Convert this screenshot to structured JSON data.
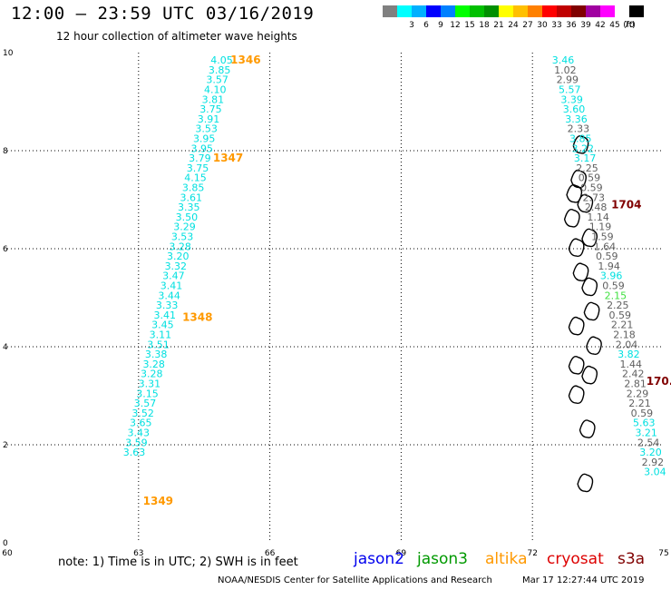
{
  "header": {
    "title": "12:00 – 23:59 UTC 03/16/2019",
    "subtitle": "12 hour collection of altimeter wave heights"
  },
  "colorbar": {
    "unit_label": "(ft)",
    "swatches": [
      {
        "color": "#808080",
        "label": ""
      },
      {
        "color": "#00ffff",
        "label": "3"
      },
      {
        "color": "#00b0ff",
        "label": "6"
      },
      {
        "color": "#0000ff",
        "label": "9"
      },
      {
        "color": "#0080ff",
        "label": "12"
      },
      {
        "color": "#00ff00",
        "label": "15"
      },
      {
        "color": "#00c000",
        "label": "18"
      },
      {
        "color": "#009000",
        "label": "21"
      },
      {
        "color": "#ffff00",
        "label": "24"
      },
      {
        "color": "#ffc000",
        "label": "27"
      },
      {
        "color": "#ff8000",
        "label": "30"
      },
      {
        "color": "#ff0000",
        "label": "33"
      },
      {
        "color": "#c00000",
        "label": "36"
      },
      {
        "color": "#800000",
        "label": "39"
      },
      {
        "color": "#a000a0",
        "label": "42"
      },
      {
        "color": "#ff00ff",
        "label": "45"
      },
      {
        "color": "#ffffff",
        "label": "70"
      },
      {
        "color": "#000000",
        "label": ""
      }
    ]
  },
  "chart_data": {
    "type": "map",
    "xlim": [
      60,
      75
    ],
    "ylim": [
      0,
      10
    ],
    "x_ticks": [
      "60",
      "63",
      "66",
      "69",
      "72",
      "75"
    ],
    "y_ticks": [
      "0",
      "2",
      "4",
      "6",
      "8",
      "10"
    ],
    "grid": true,
    "colors": {
      "cyan": "#00e0e0",
      "gray": "#606060",
      "orange": "#ff9900",
      "darkred": "#800000",
      "green": "#40e040"
    },
    "track_labels": [
      {
        "text": "1346",
        "lon": 65.1,
        "lat": 9.85,
        "color": "orange"
      },
      {
        "text": "1347",
        "lon": 64.7,
        "lat": 7.85,
        "color": "orange"
      },
      {
        "text": "1348",
        "lon": 64.0,
        "lat": 4.6,
        "color": "orange"
      },
      {
        "text": "1349",
        "lon": 63.1,
        "lat": 0.85,
        "color": "orange"
      },
      {
        "text": "1704",
        "lon": 73.8,
        "lat": 6.9,
        "color": "darkred"
      },
      {
        "text": "170.",
        "lon": 74.6,
        "lat": 3.3,
        "color": "darkred"
      }
    ],
    "tracks": [
      {
        "name": "1346-1349",
        "points": [
          {
            "lon": 64.9,
            "lat": 9.85,
            "swh": "4.05",
            "color": "cyan"
          },
          {
            "lon": 64.85,
            "lat": 9.65,
            "swh": "3.85",
            "color": "cyan"
          },
          {
            "lon": 64.8,
            "lat": 9.45,
            "swh": "3.57",
            "color": "cyan"
          },
          {
            "lon": 64.75,
            "lat": 9.25,
            "swh": "4.10",
            "color": "cyan"
          },
          {
            "lon": 64.7,
            "lat": 9.05,
            "swh": "3.81",
            "color": "cyan"
          },
          {
            "lon": 64.65,
            "lat": 8.85,
            "swh": "3.75",
            "color": "cyan"
          },
          {
            "lon": 64.6,
            "lat": 8.65,
            "swh": "3.91",
            "color": "cyan"
          },
          {
            "lon": 64.55,
            "lat": 8.45,
            "swh": "3.53",
            "color": "cyan"
          },
          {
            "lon": 64.5,
            "lat": 8.25,
            "swh": "3.95",
            "color": "cyan"
          },
          {
            "lon": 64.45,
            "lat": 8.05,
            "swh": "3.95",
            "color": "cyan"
          },
          {
            "lon": 64.4,
            "lat": 7.85,
            "swh": "3.79",
            "color": "cyan"
          },
          {
            "lon": 64.35,
            "lat": 7.65,
            "swh": "3.75",
            "color": "cyan"
          },
          {
            "lon": 64.3,
            "lat": 7.45,
            "swh": "4.15",
            "color": "cyan"
          },
          {
            "lon": 64.25,
            "lat": 7.25,
            "swh": "3.85",
            "color": "cyan"
          },
          {
            "lon": 64.2,
            "lat": 7.05,
            "swh": "3.61",
            "color": "cyan"
          },
          {
            "lon": 64.15,
            "lat": 6.85,
            "swh": "3.35",
            "color": "cyan"
          },
          {
            "lon": 64.1,
            "lat": 6.65,
            "swh": "3.50",
            "color": "cyan"
          },
          {
            "lon": 64.05,
            "lat": 6.45,
            "swh": "3.29",
            "color": "cyan"
          },
          {
            "lon": 64.0,
            "lat": 6.25,
            "swh": "3.53",
            "color": "cyan"
          },
          {
            "lon": 63.95,
            "lat": 6.05,
            "swh": "3.28",
            "color": "cyan"
          },
          {
            "lon": 63.9,
            "lat": 5.85,
            "swh": "3.20",
            "color": "cyan"
          },
          {
            "lon": 63.85,
            "lat": 5.65,
            "swh": "3.32",
            "color": "cyan"
          },
          {
            "lon": 63.8,
            "lat": 5.45,
            "swh": "3.47",
            "color": "cyan"
          },
          {
            "lon": 63.75,
            "lat": 5.25,
            "swh": "3.41",
            "color": "cyan"
          },
          {
            "lon": 63.7,
            "lat": 5.05,
            "swh": "3.44",
            "color": "cyan"
          },
          {
            "lon": 63.65,
            "lat": 4.85,
            "swh": "3.33",
            "color": "cyan"
          },
          {
            "lon": 63.6,
            "lat": 4.65,
            "swh": "3.41",
            "color": "cyan"
          },
          {
            "lon": 63.55,
            "lat": 4.45,
            "swh": "3.45",
            "color": "cyan"
          },
          {
            "lon": 63.5,
            "lat": 4.25,
            "swh": "3.11",
            "color": "cyan"
          },
          {
            "lon": 63.45,
            "lat": 4.05,
            "swh": "3.51",
            "color": "cyan"
          },
          {
            "lon": 63.4,
            "lat": 3.85,
            "swh": "3.38",
            "color": "cyan"
          },
          {
            "lon": 63.35,
            "lat": 3.65,
            "swh": "3.28",
            "color": "cyan"
          },
          {
            "lon": 63.3,
            "lat": 3.45,
            "swh": "3.28",
            "color": "cyan"
          },
          {
            "lon": 63.25,
            "lat": 3.25,
            "swh": "3.31",
            "color": "cyan"
          },
          {
            "lon": 63.2,
            "lat": 3.05,
            "swh": "3.15",
            "color": "cyan"
          },
          {
            "lon": 63.15,
            "lat": 2.85,
            "swh": "3.57",
            "color": "cyan"
          },
          {
            "lon": 63.1,
            "lat": 2.65,
            "swh": "3.52",
            "color": "cyan"
          },
          {
            "lon": 63.05,
            "lat": 2.45,
            "swh": "3.65",
            "color": "cyan"
          },
          {
            "lon": 63.0,
            "lat": 2.25,
            "swh": "3.43",
            "color": "cyan"
          },
          {
            "lon": 62.95,
            "lat": 2.05,
            "swh": "3.59",
            "color": "cyan"
          },
          {
            "lon": 62.9,
            "lat": 1.85,
            "swh": "3.63",
            "color": "cyan"
          }
        ]
      },
      {
        "name": "1704",
        "points": [
          {
            "lon": 72.7,
            "lat": 9.85,
            "swh": "3.46",
            "color": "cyan"
          },
          {
            "lon": 72.75,
            "lat": 9.65,
            "swh": "1.02",
            "color": "gray"
          },
          {
            "lon": 72.8,
            "lat": 9.45,
            "swh": "2.99",
            "color": "gray"
          },
          {
            "lon": 72.85,
            "lat": 9.25,
            "swh": "5.57",
            "color": "cyan"
          },
          {
            "lon": 72.9,
            "lat": 9.05,
            "swh": "3.39",
            "color": "cyan"
          },
          {
            "lon": 72.95,
            "lat": 8.85,
            "swh": "3.60",
            "color": "cyan"
          },
          {
            "lon": 73.0,
            "lat": 8.65,
            "swh": "3.36",
            "color": "cyan"
          },
          {
            "lon": 73.05,
            "lat": 8.45,
            "swh": "2.33",
            "color": "gray"
          },
          {
            "lon": 73.1,
            "lat": 8.25,
            "swh": "3.85",
            "color": "cyan"
          },
          {
            "lon": 73.15,
            "lat": 8.05,
            "swh": "3.22",
            "color": "cyan"
          },
          {
            "lon": 73.2,
            "lat": 7.85,
            "swh": "3.17",
            "color": "cyan"
          },
          {
            "lon": 73.25,
            "lat": 7.65,
            "swh": "2.25",
            "color": "gray"
          },
          {
            "lon": 73.3,
            "lat": 7.45,
            "swh": "0.59",
            "color": "gray"
          },
          {
            "lon": 73.35,
            "lat": 7.25,
            "swh": "0.59",
            "color": "gray"
          },
          {
            "lon": 73.4,
            "lat": 7.05,
            "swh": "2.73",
            "color": "gray"
          },
          {
            "lon": 73.45,
            "lat": 6.85,
            "swh": "2.48",
            "color": "gray"
          },
          {
            "lon": 73.5,
            "lat": 6.65,
            "swh": "1.14",
            "color": "gray"
          },
          {
            "lon": 73.55,
            "lat": 6.45,
            "swh": "1.19",
            "color": "gray"
          },
          {
            "lon": 73.6,
            "lat": 6.25,
            "swh": "1.59",
            "color": "gray"
          },
          {
            "lon": 73.65,
            "lat": 6.05,
            "swh": "1.64",
            "color": "gray"
          },
          {
            "lon": 73.7,
            "lat": 5.85,
            "swh": "0.59",
            "color": "gray"
          },
          {
            "lon": 73.75,
            "lat": 5.65,
            "swh": "1.94",
            "color": "gray"
          },
          {
            "lon": 73.8,
            "lat": 5.45,
            "swh": "3.96",
            "color": "cyan"
          },
          {
            "lon": 73.85,
            "lat": 5.25,
            "swh": "0.59",
            "color": "gray"
          },
          {
            "lon": 73.9,
            "lat": 5.05,
            "swh": "2.15",
            "color": "green"
          },
          {
            "lon": 73.95,
            "lat": 4.85,
            "swh": "2.25",
            "color": "gray"
          },
          {
            "lon": 74.0,
            "lat": 4.65,
            "swh": "0.59",
            "color": "gray"
          },
          {
            "lon": 74.05,
            "lat": 4.45,
            "swh": "2.21",
            "color": "gray"
          },
          {
            "lon": 74.1,
            "lat": 4.25,
            "swh": "2.18",
            "color": "gray"
          },
          {
            "lon": 74.15,
            "lat": 4.05,
            "swh": "2.04",
            "color": "gray"
          },
          {
            "lon": 74.2,
            "lat": 3.85,
            "swh": "3.82",
            "color": "cyan"
          },
          {
            "lon": 74.25,
            "lat": 3.65,
            "swh": "1.44",
            "color": "gray"
          },
          {
            "lon": 74.3,
            "lat": 3.45,
            "swh": "2.42",
            "color": "gray"
          },
          {
            "lon": 74.35,
            "lat": 3.25,
            "swh": "2.81",
            "color": "gray"
          },
          {
            "lon": 74.4,
            "lat": 3.05,
            "swh": "2.29",
            "color": "gray"
          },
          {
            "lon": 74.45,
            "lat": 2.85,
            "swh": "2.21",
            "color": "gray"
          },
          {
            "lon": 74.5,
            "lat": 2.65,
            "swh": "0.59",
            "color": "gray"
          },
          {
            "lon": 74.55,
            "lat": 2.45,
            "swh": "5.63",
            "color": "cyan"
          },
          {
            "lon": 74.6,
            "lat": 2.25,
            "swh": "3.21",
            "color": "cyan"
          },
          {
            "lon": 74.65,
            "lat": 2.05,
            "swh": "2.54",
            "color": "gray"
          },
          {
            "lon": 74.7,
            "lat": 1.85,
            "swh": "3.20",
            "color": "cyan"
          },
          {
            "lon": 74.75,
            "lat": 1.65,
            "swh": "2.92",
            "color": "gray"
          },
          {
            "lon": 74.8,
            "lat": 1.45,
            "swh": "3.04",
            "color": "cyan"
          }
        ]
      }
    ],
    "islands": [
      {
        "lon": 73.1,
        "lat": 8.1
      },
      {
        "lon": 73.05,
        "lat": 7.4
      },
      {
        "lon": 72.95,
        "lat": 7.1
      },
      {
        "lon": 72.9,
        "lat": 6.6
      },
      {
        "lon": 73.2,
        "lat": 6.9
      },
      {
        "lon": 73.3,
        "lat": 6.2
      },
      {
        "lon": 73.0,
        "lat": 6.0
      },
      {
        "lon": 73.1,
        "lat": 5.5
      },
      {
        "lon": 73.3,
        "lat": 5.2
      },
      {
        "lon": 73.35,
        "lat": 4.7
      },
      {
        "lon": 73.0,
        "lat": 4.4
      },
      {
        "lon": 73.4,
        "lat": 4.0
      },
      {
        "lon": 73.0,
        "lat": 3.6
      },
      {
        "lon": 73.3,
        "lat": 3.4
      },
      {
        "lon": 73.0,
        "lat": 3.0
      },
      {
        "lon": 73.25,
        "lat": 2.3
      },
      {
        "lon": 73.2,
        "lat": 1.2
      }
    ]
  },
  "note": {
    "text": "note: 1) Time is in UTC; 2) SWH is in feet"
  },
  "legend": [
    {
      "label": "jason2",
      "color": "#0000ee"
    },
    {
      "label": "jason3",
      "color": "#009900"
    },
    {
      "label": "altika",
      "color": "#ff9900"
    },
    {
      "label": "cryosat",
      "color": "#dd0000"
    },
    {
      "label": "s3a",
      "color": "#800000"
    }
  ],
  "footer": {
    "credit": "NOAA/NESDIS Center for Satellite Applications and Research",
    "timestamp": "Mar 17 12:27:44 UTC 2019"
  }
}
